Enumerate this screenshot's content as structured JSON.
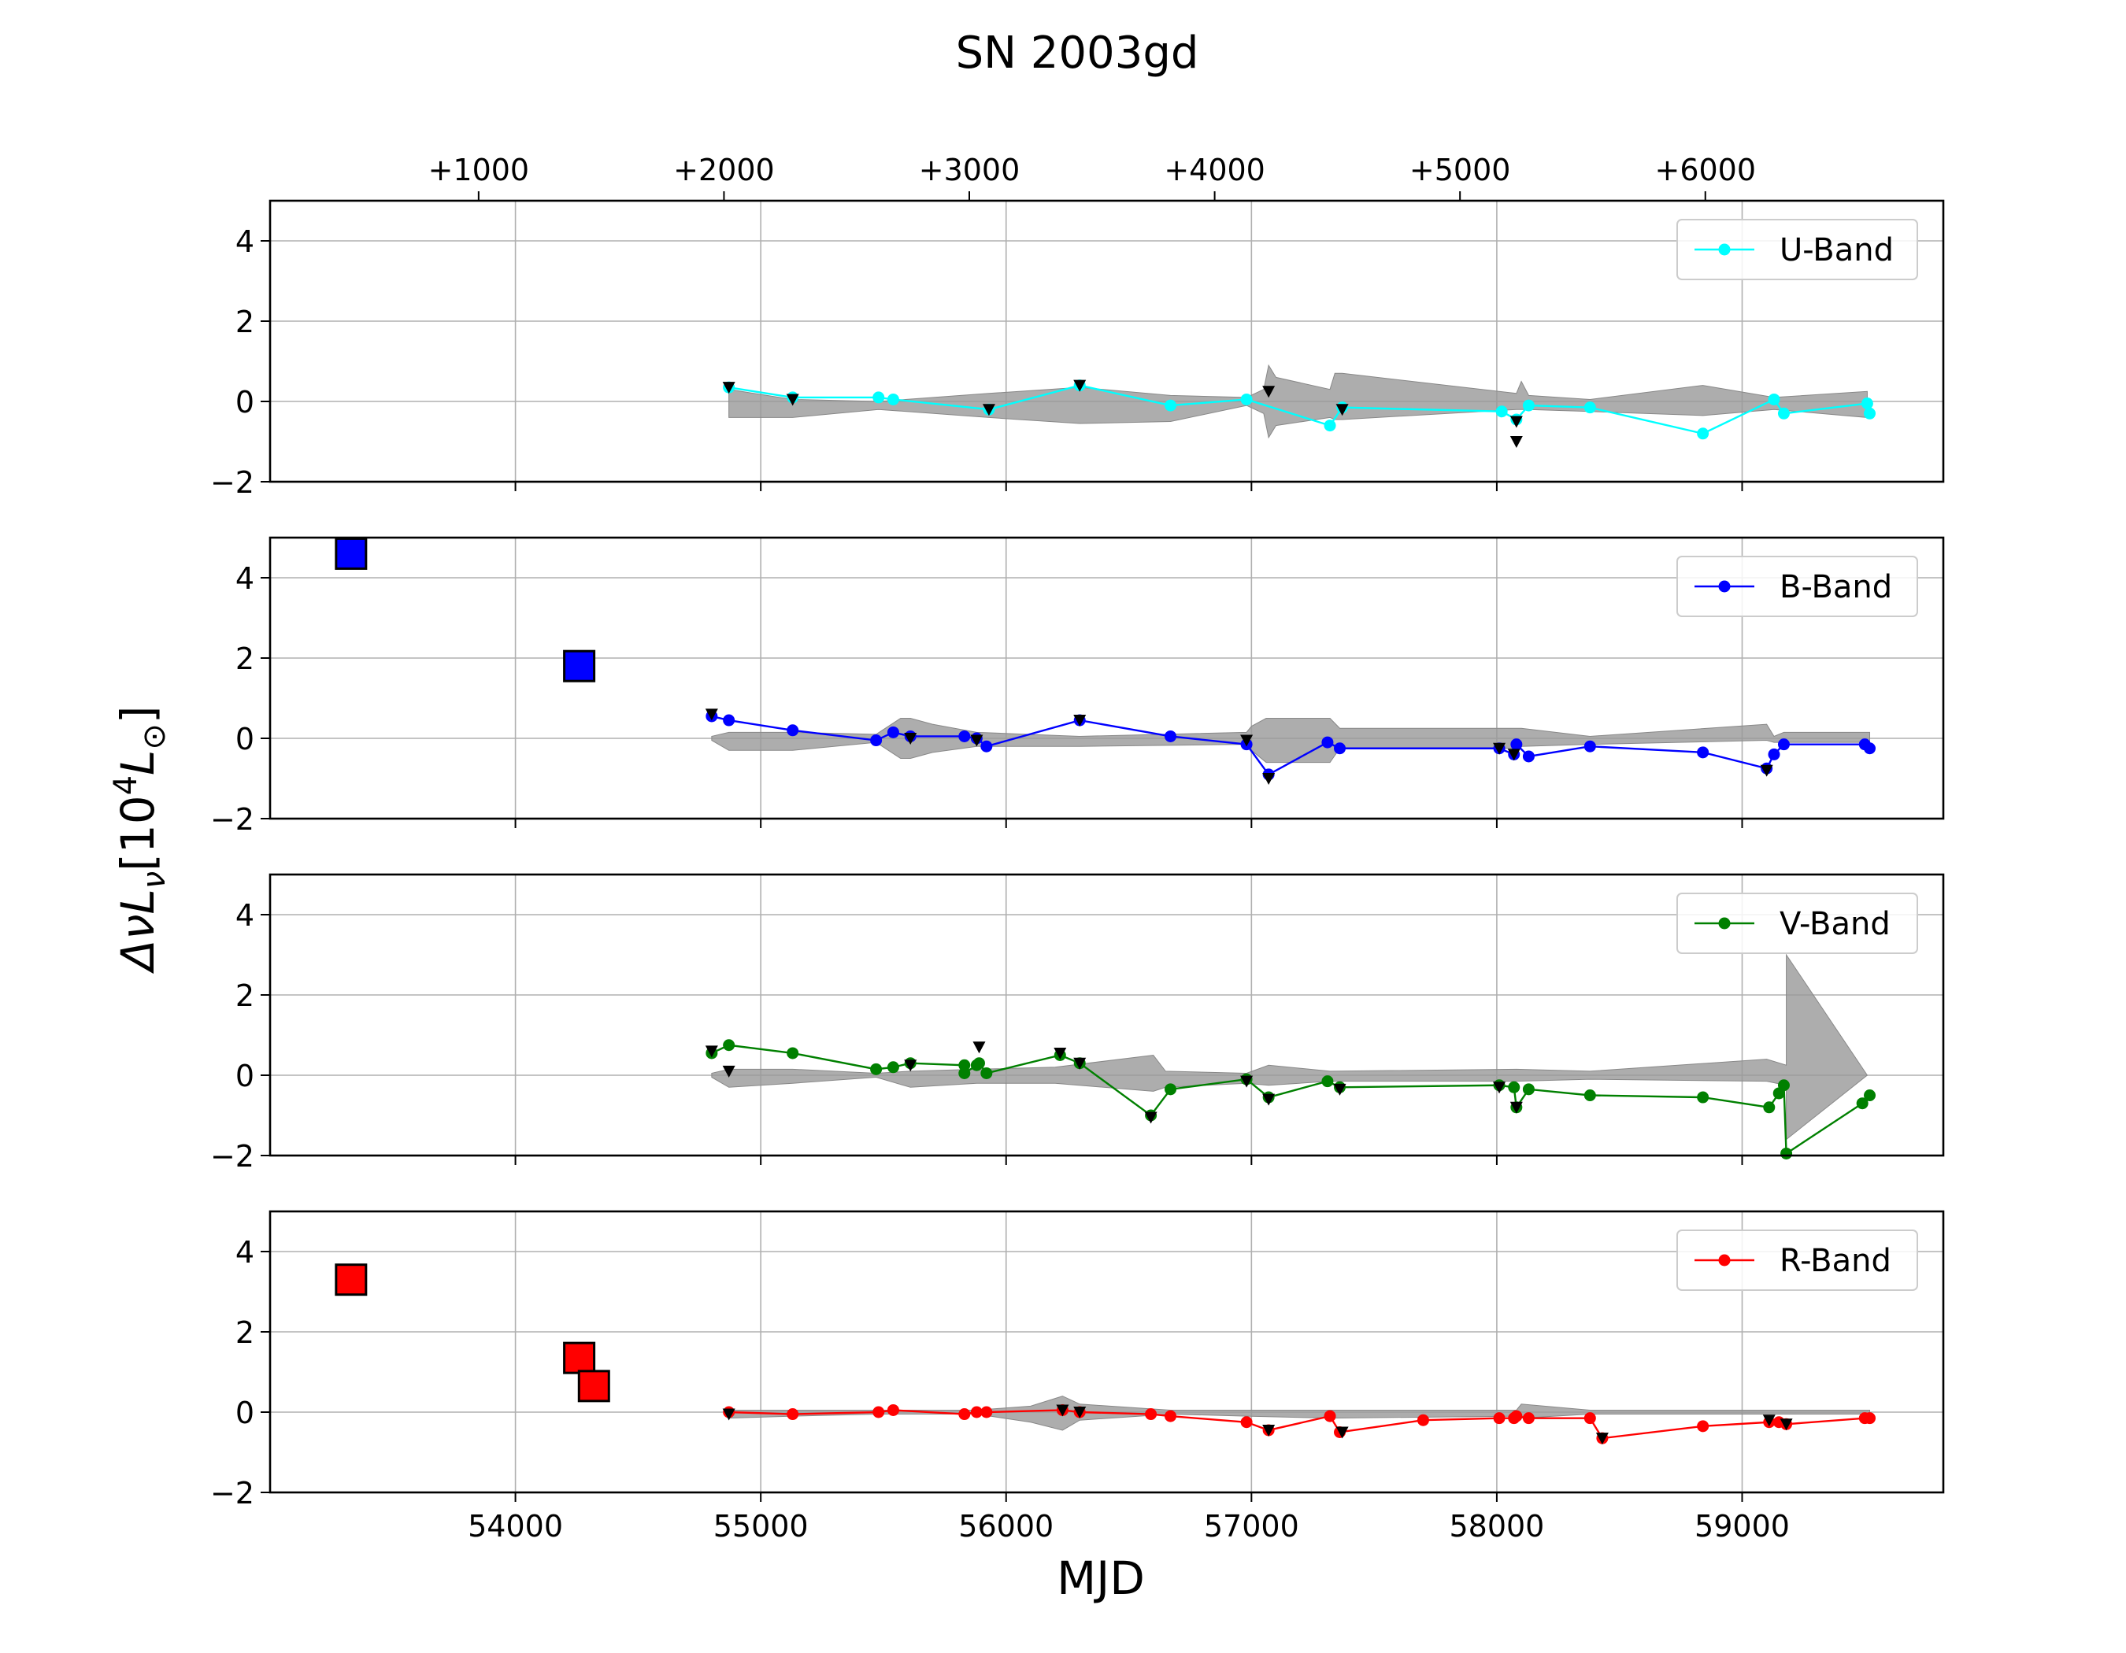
{
  "figure": {
    "title": "SN 2003gd",
    "xlabel": "MJD",
    "ylabel_main": "ΔνL",
    "ylabel_sub": "ν",
    "ylabel_bracket_open": "[10",
    "ylabel_sup": "4",
    "ylabel_L": "L",
    "ylabel_odot": "⊙",
    "ylabel_bracket_close": "]"
  },
  "chart_data": {
    "type": "line",
    "title": "SN 2003gd",
    "xlabel": "MJD",
    "ylabel": "ΔνLν [10^4 L⊙]",
    "xlim": [
      53000,
      59820
    ],
    "ylim": [
      -2,
      5
    ],
    "grid": true,
    "legend_position": "top-right",
    "explosion_mjd": 52850,
    "x_ticks": [
      54000,
      55000,
      56000,
      57000,
      58000,
      59000
    ],
    "x_tick_labels": [
      "54000",
      "55000",
      "56000",
      "57000",
      "58000",
      "59000"
    ],
    "top_axis_ticks": [
      1000,
      2000,
      3000,
      4000,
      5000,
      6000
    ],
    "top_axis_tick_labels": [
      "+1000",
      "+2000",
      "+3000",
      "+4000",
      "+5000",
      "+6000"
    ],
    "y_ticks": [
      -2,
      0,
      2,
      4
    ],
    "y_tick_labels": [
      "−2",
      "0",
      "2",
      "4"
    ],
    "panels": [
      {
        "band": "U-Band",
        "color": "#00ffff",
        "squares": [],
        "x": [
          54870,
          55130,
          55480,
          55540,
          55930,
          56300,
          56670,
          56980,
          57320,
          57370,
          58020,
          58080,
          58130,
          58380,
          58840,
          59130,
          59170,
          59510,
          59520
        ],
        "y": [
          0.35,
          0.1,
          0.1,
          0.05,
          -0.2,
          0.4,
          -0.1,
          0.05,
          -0.6,
          -0.15,
          -0.25,
          -0.45,
          -0.1,
          -0.15,
          -0.8,
          0.05,
          -0.3,
          -0.05,
          -0.3
        ],
        "upper_limits": [
          [
            54870,
            0.35
          ],
          [
            55130,
            0.05
          ],
          [
            55930,
            -0.2
          ],
          [
            56300,
            0.4
          ],
          [
            57070,
            0.25
          ],
          [
            57370,
            -0.2
          ],
          [
            58080,
            -0.5
          ],
          [
            58080,
            -1.0
          ]
        ],
        "band_x": [
          54870,
          55130,
          55480,
          55930,
          56300,
          56670,
          56980,
          57050,
          57070,
          57100,
          57320,
          57340,
          57370,
          58080,
          58100,
          58130,
          58380,
          58840,
          59130,
          59510
        ],
        "band_upper": [
          0.3,
          0.05,
          0.0,
          0.2,
          0.35,
          0.15,
          0.1,
          0.3,
          0.9,
          0.6,
          0.3,
          0.7,
          0.7,
          0.2,
          0.5,
          0.15,
          0.05,
          0.4,
          0.1,
          0.25
        ],
        "band_lower": [
          -0.4,
          -0.4,
          -0.2,
          -0.4,
          -0.55,
          -0.5,
          -0.1,
          -0.3,
          -0.9,
          -0.6,
          -0.4,
          -0.45,
          -0.45,
          -0.2,
          -0.2,
          -0.2,
          -0.25,
          -0.35,
          -0.2,
          -0.4
        ]
      },
      {
        "band": "B-Band",
        "color": "#0000ff",
        "squares": [
          [
            53330,
            4.6
          ],
          [
            54260,
            1.8
          ]
        ],
        "x": [
          54800,
          54870,
          55130,
          55470,
          55540,
          55610,
          55830,
          55880,
          55920,
          56300,
          56670,
          56980,
          57070,
          57310,
          57360,
          58010,
          58070,
          58080,
          58130,
          58380,
          58840,
          59100,
          59130,
          59170,
          59500,
          59520
        ],
        "y": [
          0.55,
          0.45,
          0.2,
          -0.05,
          0.15,
          0.05,
          0.05,
          0.0,
          -0.2,
          0.45,
          0.05,
          -0.15,
          -0.9,
          -0.1,
          -0.25,
          -0.25,
          -0.4,
          -0.15,
          -0.45,
          -0.2,
          -0.35,
          -0.75,
          -0.4,
          -0.15,
          -0.15,
          -0.25
        ],
        "upper_limits": [
          [
            54800,
            0.6
          ],
          [
            55610,
            0.0
          ],
          [
            55880,
            -0.05
          ],
          [
            56300,
            0.45
          ],
          [
            56980,
            -0.05
          ],
          [
            57070,
            -1.0
          ],
          [
            58010,
            -0.25
          ],
          [
            58070,
            -0.4
          ],
          [
            59100,
            -0.8
          ]
        ],
        "band_x": [
          54800,
          54870,
          55130,
          55470,
          55570,
          55610,
          55700,
          55880,
          56300,
          56980,
          57000,
          57060,
          57320,
          57360,
          58080,
          58100,
          58380,
          59100,
          59130,
          59170,
          59520
        ],
        "band_upper": [
          0.05,
          0.15,
          0.15,
          0.1,
          0.5,
          0.5,
          0.35,
          0.15,
          0.05,
          0.15,
          0.3,
          0.5,
          0.5,
          0.25,
          0.25,
          0.25,
          0.05,
          0.35,
          0.05,
          0.15,
          0.15
        ],
        "band_lower": [
          -0.05,
          -0.3,
          -0.3,
          -0.1,
          -0.5,
          -0.5,
          -0.35,
          -0.2,
          -0.2,
          -0.15,
          -0.3,
          -0.6,
          -0.6,
          -0.25,
          -0.25,
          -0.2,
          -0.15,
          -0.05,
          -0.1,
          -0.1,
          -0.1
        ]
      },
      {
        "band": "V-Band",
        "color": "#008000",
        "squares": [],
        "x": [
          54800,
          54870,
          55130,
          55470,
          55540,
          55610,
          55830,
          55830,
          55880,
          55890,
          55920,
          56220,
          56300,
          56590,
          56670,
          56980,
          57070,
          57310,
          57360,
          58010,
          58070,
          58080,
          58130,
          58380,
          58840,
          59110,
          59150,
          59170,
          59180,
          59490,
          59520
        ],
        "y": [
          0.55,
          0.75,
          0.55,
          0.15,
          0.2,
          0.3,
          0.25,
          0.05,
          0.25,
          0.3,
          0.05,
          0.5,
          0.3,
          -1.0,
          -0.35,
          -0.1,
          -0.55,
          -0.15,
          -0.3,
          -0.25,
          -0.3,
          -0.8,
          -0.35,
          -0.5,
          -0.55,
          -0.8,
          -0.45,
          -0.25,
          -1.95,
          -0.7,
          -0.5
        ],
        "upper_limits": [
          [
            54800,
            0.6
          ],
          [
            54870,
            0.1
          ],
          [
            55610,
            0.25
          ],
          [
            55890,
            0.7
          ],
          [
            56220,
            0.55
          ],
          [
            56300,
            0.3
          ],
          [
            56590,
            -1.05
          ],
          [
            56980,
            -0.15
          ],
          [
            57070,
            -0.6
          ],
          [
            57360,
            -0.35
          ],
          [
            58010,
            -0.3
          ],
          [
            58080,
            -0.8
          ]
        ],
        "band_x": [
          54800,
          54870,
          55130,
          55470,
          55610,
          55880,
          56200,
          56600,
          56650,
          56980,
          57070,
          57320,
          58080,
          58380,
          59100,
          59180,
          59180,
          59510
        ],
        "band_upper": [
          0.05,
          0.15,
          0.15,
          0.05,
          0.1,
          0.15,
          0.2,
          0.5,
          0.1,
          0.05,
          0.25,
          0.1,
          0.15,
          0.1,
          0.4,
          0.25,
          3.0,
          0.0
        ],
        "band_lower": [
          -0.05,
          -0.3,
          -0.2,
          -0.05,
          -0.3,
          -0.2,
          -0.2,
          -0.4,
          -0.3,
          -0.2,
          -0.25,
          -0.15,
          -0.15,
          -0.1,
          -0.15,
          -0.25,
          -1.6,
          0.0
        ]
      },
      {
        "band": "R-Band",
        "color": "#ff0000",
        "squares": [
          [
            53330,
            3.3
          ],
          [
            54260,
            1.35
          ],
          [
            54320,
            0.65
          ]
        ],
        "x": [
          54870,
          55130,
          55480,
          55540,
          55830,
          55880,
          55920,
          56230,
          56300,
          56590,
          56670,
          56980,
          57070,
          57320,
          57360,
          57700,
          58010,
          58070,
          58080,
          58130,
          58380,
          58430,
          58840,
          59110,
          59150,
          59180,
          59500,
          59520
        ],
        "y": [
          0.0,
          -0.05,
          0.0,
          0.05,
          -0.05,
          0.0,
          0.0,
          0.05,
          0.0,
          -0.05,
          -0.1,
          -0.25,
          -0.45,
          -0.1,
          -0.5,
          -0.2,
          -0.15,
          -0.15,
          -0.1,
          -0.15,
          -0.15,
          -0.65,
          -0.35,
          -0.25,
          -0.25,
          -0.3,
          -0.15,
          -0.15
        ],
        "upper_limits": [
          [
            54870,
            -0.05
          ],
          [
            56230,
            0.05
          ],
          [
            56300,
            0.0
          ],
          [
            57070,
            -0.45
          ],
          [
            57370,
            -0.5
          ],
          [
            58430,
            -0.65
          ],
          [
            59110,
            -0.2
          ],
          [
            59180,
            -0.3
          ]
        ],
        "band_x": [
          54870,
          55130,
          55480,
          55880,
          56100,
          56230,
          56300,
          56670,
          56980,
          57320,
          58080,
          58100,
          58380,
          59130,
          59520
        ],
        "band_upper": [
          0.05,
          0.05,
          0.05,
          0.05,
          0.15,
          0.4,
          0.2,
          0.05,
          0.05,
          0.05,
          0.05,
          0.2,
          0.05,
          0.05,
          0.05
        ],
        "band_lower": [
          -0.15,
          -0.1,
          -0.05,
          -0.05,
          -0.25,
          -0.45,
          -0.2,
          -0.05,
          -0.1,
          -0.15,
          -0.1,
          -0.15,
          -0.05,
          -0.05,
          -0.05
        ]
      }
    ]
  }
}
